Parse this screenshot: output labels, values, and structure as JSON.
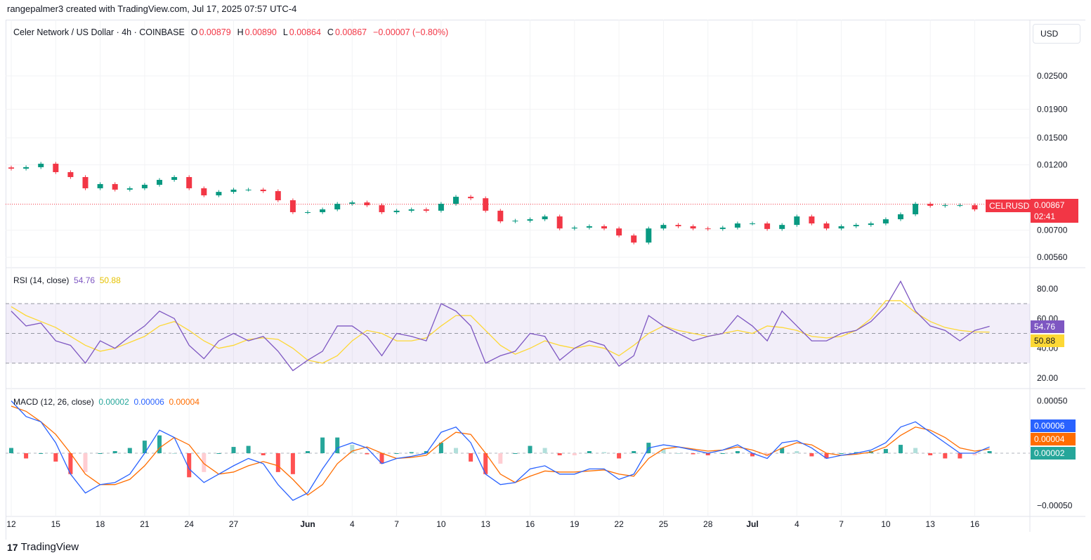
{
  "credit": "rangepalmer3 created with TradingView.com, Jul 17, 2025 07:57 UTC-4",
  "legend": {
    "symbol": "Celer Network / US Dollar · 4h · COINBASE",
    "o_label": "O",
    "o": "0.00879",
    "h_label": "H",
    "h": "0.00890",
    "l_label": "L",
    "l": "0.00864",
    "c_label": "C",
    "c": "0.00867",
    "change": "−0.00007 (−0.80%)"
  },
  "currency_button": "USD",
  "price_tag": {
    "symbol": "CELRUSD",
    "price": "0.00867",
    "countdown": "02:41"
  },
  "rsi": {
    "label": "RSI (14, close)",
    "value": "54.76",
    "ma_value": "50.88"
  },
  "macd": {
    "label": "MACD (12, 26, close)",
    "hist": "0.00002",
    "macd": "0.00006",
    "signal": "0.00004"
  },
  "brand": "TradingView",
  "colors": {
    "up": "#089981",
    "down": "#f23645",
    "rsi": "#7e57c2",
    "rsi_ma": "#fdd835",
    "macd": "#2962ff",
    "signal": "#ff6d00"
  },
  "chart_data": [
    {
      "type": "candlestick",
      "title": "CELRUSD 4h",
      "scale": "log",
      "ylim": [
        0.0052,
        0.028
      ],
      "yticks": [
        "0.02500",
        "0.01900",
        "0.01500",
        "0.01200",
        "0.00700",
        "0.00560"
      ],
      "ytick_values": [
        0.025,
        0.019,
        0.015,
        0.012,
        0.007,
        0.0056
      ],
      "xtick_labels": [
        "12",
        "15",
        "18",
        "21",
        "24",
        "27",
        "Jun",
        "4",
        "7",
        "10",
        "13",
        "16",
        "19",
        "22",
        "25",
        "28",
        "Jul",
        "4",
        "7",
        "10",
        "13",
        "16"
      ],
      "xtick_days": [
        0,
        3,
        6,
        9,
        12,
        15,
        20,
        23,
        26,
        29,
        32,
        35,
        38,
        41,
        44,
        47,
        50,
        53,
        56,
        59,
        62,
        65
      ],
      "close": [
        0.01163,
        0.01177,
        0.01211,
        0.0113,
        0.01085,
        0.00989,
        0.01024,
        0.00978,
        0.00989,
        0.01018,
        0.0106,
        0.01085,
        0.00989,
        0.00933,
        0.0096,
        0.00978,
        0.00978,
        0.00966,
        0.00896,
        0.00812,
        0.00812,
        0.00831,
        0.0087,
        0.0088,
        0.0086,
        0.00812,
        0.00822,
        0.00831,
        0.00822,
        0.0087,
        0.00922,
        0.00911,
        0.00822,
        0.00753,
        0.00757,
        0.00766,
        0.00784,
        0.0071,
        0.00715,
        0.00723,
        0.0071,
        0.0067,
        0.00632,
        0.0071,
        0.00731,
        0.00723,
        0.0071,
        0.00707,
        0.00715,
        0.0074,
        0.0074,
        0.00707,
        0.00731,
        0.00784,
        0.0074,
        0.0071,
        0.00723,
        0.00731,
        0.0074,
        0.00766,
        0.00798,
        0.0087,
        0.00856,
        0.0086,
        0.0086,
        0.00831,
        0.00867
      ],
      "last_price": 0.00867
    },
    {
      "type": "line",
      "title": "RSI (14, close)",
      "ylim": [
        15,
        90
      ],
      "yticks": [
        "80.00",
        "60.00",
        "40.00",
        "20.00"
      ],
      "ytick_values": [
        80,
        60,
        40,
        20
      ],
      "band": [
        30,
        70
      ],
      "rsi": [
        65,
        55,
        57,
        45,
        42,
        30,
        45,
        40,
        48,
        55,
        65,
        60,
        42,
        33,
        45,
        50,
        45,
        48,
        38,
        25,
        32,
        38,
        55,
        55,
        48,
        35,
        50,
        48,
        45,
        70,
        65,
        55,
        30,
        35,
        38,
        50,
        48,
        32,
        40,
        45,
        42,
        28,
        35,
        62,
        55,
        50,
        45,
        48,
        50,
        62,
        55,
        45,
        65,
        55,
        45,
        45,
        50,
        52,
        58,
        68,
        85,
        65,
        55,
        52,
        45,
        52,
        54.76
      ],
      "rsi_ma": [
        68,
        62,
        58,
        54,
        48,
        42,
        38,
        40,
        44,
        48,
        55,
        58,
        52,
        45,
        40,
        42,
        46,
        47,
        46,
        40,
        32,
        30,
        35,
        45,
        52,
        50,
        45,
        45,
        47,
        55,
        62,
        62,
        52,
        42,
        36,
        40,
        45,
        42,
        40,
        42,
        40,
        35,
        42,
        50,
        55,
        52,
        50,
        48,
        50,
        52,
        50,
        55,
        54,
        52,
        48,
        47,
        48,
        52,
        60,
        72,
        72,
        64,
        58,
        54,
        52,
        51,
        50.88
      ]
    },
    {
      "type": "line",
      "title": "MACD (12, 26, close)",
      "ylim": [
        -0.00055,
        0.00055
      ],
      "yticks": [
        "0.00050",
        "−0.00050"
      ],
      "ytick_values": [
        0.0005,
        -0.0005
      ],
      "macd": [
        0.0005,
        0.00035,
        0.0003,
        0.0001,
        -0.0002,
        -0.00038,
        -0.0003,
        -0.00028,
        -0.0002,
        0,
        0.00022,
        0.00015,
        -0.00015,
        -0.00028,
        -0.0002,
        -0.00012,
        -5e-05,
        -0.0001,
        -0.0003,
        -0.00045,
        -0.00038,
        -0.00015,
        5e-05,
        0.0001,
        5e-05,
        -0.0001,
        -5e-05,
        -3e-05,
        0,
        0.0002,
        0.00025,
        0.0001,
        -0.0002,
        -0.0003,
        -0.00028,
        -0.00015,
        -0.00012,
        -0.0002,
        -0.0002,
        -0.00015,
        -0.00015,
        -0.00025,
        -0.0002,
        5e-05,
        8e-05,
        6e-05,
        3e-05,
        0,
        3e-05,
        8e-05,
        0,
        -5e-05,
        0.0001,
        0.00012,
        5e-05,
        -5e-05,
        -2e-05,
        0,
        3e-05,
        0.0001,
        0.00025,
        0.0003,
        0.0002,
        0.0001,
        0,
        0,
        6e-05
      ],
      "signal": [
        0.00045,
        0.0004,
        0.0003,
        0.00018,
        0,
        -0.0002,
        -0.0003,
        -0.0003,
        -0.00025,
        -0.00012,
        5e-05,
        0.00015,
        8e-05,
        -0.0001,
        -0.0002,
        -0.00018,
        -0.00012,
        -8e-05,
        -0.00012,
        -0.00025,
        -0.0004,
        -0.0003,
        -0.0001,
        2e-05,
        6e-05,
        0,
        -5e-05,
        -4e-05,
        -2e-05,
        0.0001,
        0.0002,
        0.00018,
        0,
        -0.0002,
        -0.00028,
        -0.00022,
        -0.00017,
        -0.00018,
        -0.00018,
        -0.00017,
        -0.00016,
        -0.0002,
        -0.00022,
        -5e-05,
        4e-05,
        6e-05,
        4e-05,
        2e-05,
        3e-05,
        6e-05,
        3e-05,
        -2e-05,
        5e-05,
        0.0001,
        8e-05,
        0,
        -2e-05,
        -1e-05,
        1e-05,
        6e-05,
        0.00017,
        0.00025,
        0.00022,
        0.00015,
        5e-05,
        2e-05,
        4e-05
      ]
    }
  ]
}
